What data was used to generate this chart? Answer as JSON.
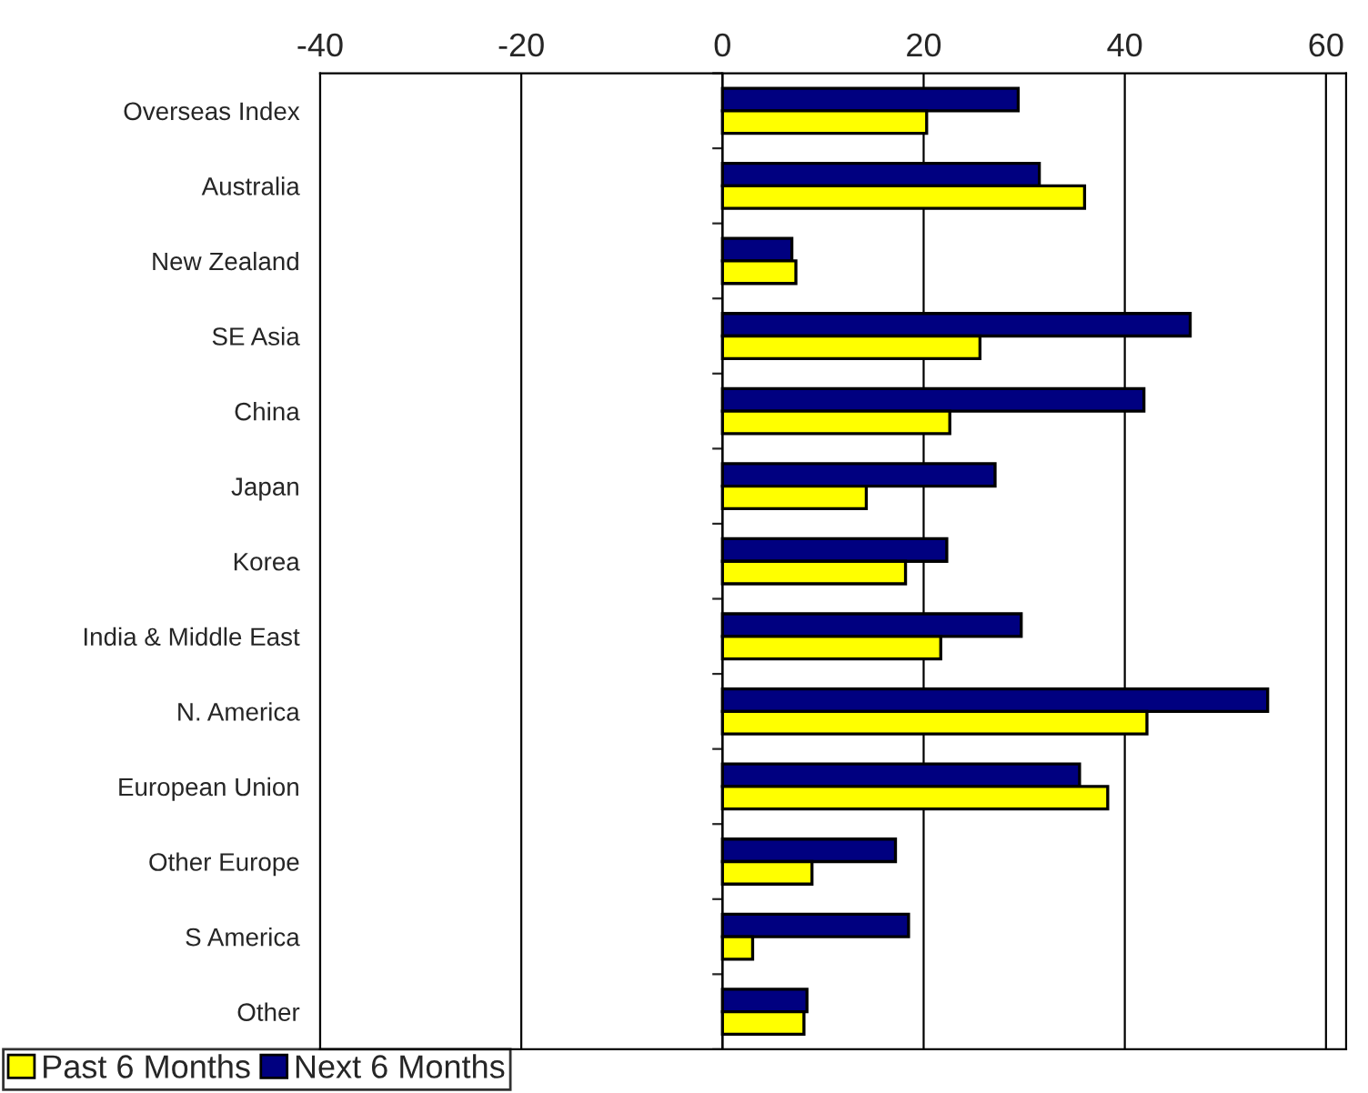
{
  "chart_data": {
    "type": "bar",
    "orientation": "horizontal",
    "categories": [
      "Overseas Index",
      "Australia",
      "New Zealand",
      "SE Asia",
      "China",
      "Japan",
      "Korea",
      "India & Middle East",
      "N. America",
      "European Union",
      "Other Europe",
      "S America",
      "Other"
    ],
    "series": [
      {
        "name": "Next 6 Months",
        "color": "#000080",
        "values": [
          29.4,
          31.5,
          6.9,
          46.5,
          41.9,
          27.1,
          22.3,
          29.7,
          54.2,
          35.5,
          17.2,
          18.5,
          8.4
        ]
      },
      {
        "name": "Past 6 Months",
        "color": "#ffff00",
        "values": [
          20.3,
          36.0,
          7.3,
          25.6,
          22.6,
          14.3,
          18.2,
          21.7,
          42.2,
          38.3,
          8.9,
          3.0,
          8.1
        ]
      }
    ],
    "xlim": [
      -40,
      62
    ],
    "xticks": [
      -40,
      -20,
      0,
      20,
      40,
      60
    ],
    "grid": "x",
    "legend": "bottom left"
  }
}
